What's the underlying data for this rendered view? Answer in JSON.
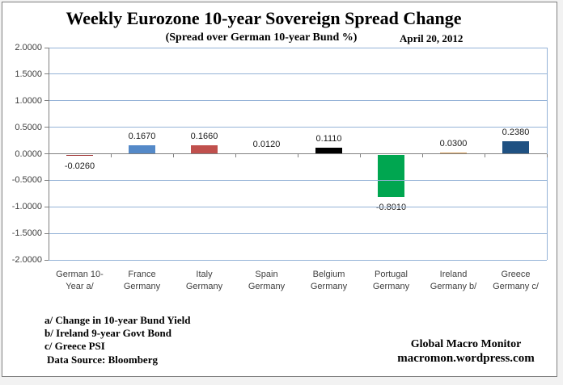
{
  "header": {
    "title": "Weekly Eurozone 10-year Sovereign Spread Change",
    "subtitle": "(Spread over German 10-year Bund  %)",
    "date_label": "April 20, 2012"
  },
  "chart_data": {
    "type": "bar",
    "title": "Weekly Eurozone 10-year Sovereign Spread Change",
    "subtitle": "(Spread over German 10-year Bund %)",
    "date": "April 20, 2012",
    "categories": [
      "German 10-Year a/",
      "France Germany",
      "Italy Germany",
      "Spain Germany",
      "Belgium Germany",
      "Portugal Germany",
      "Ireland Germany b/",
      "Greece Germany c/"
    ],
    "category_label_lines": [
      [
        "German 10-",
        "Year a/"
      ],
      [
        "France",
        "Germany"
      ],
      [
        "Italy",
        "Germany"
      ],
      [
        "Spain",
        "Germany"
      ],
      [
        "Belgium",
        "Germany"
      ],
      [
        "Portugal",
        "Germany"
      ],
      [
        "Ireland",
        "Germany b/"
      ],
      [
        "Greece",
        "Germany c/"
      ]
    ],
    "values": [
      -0.026,
      0.167,
      0.166,
      0.012,
      0.111,
      -0.801,
      0.03,
      0.238
    ],
    "value_labels": [
      "-0.0260",
      "0.1670",
      "0.1660",
      "0.0120",
      "0.1110",
      "-0.8010",
      "0.0300",
      "0.2380"
    ],
    "bar_colors": [
      "#9E3132",
      "#5489C8",
      "#C0504D",
      "#E2C118",
      "#000000",
      "#00A650",
      "#D9A05C",
      "#1F5182"
    ],
    "xlabel": "",
    "ylabel": "",
    "ylim": [
      -2,
      2
    ],
    "ytick_step": 0.5,
    "ytick_labels": [
      "2.0000",
      "1.5000",
      "1.0000",
      "0.5000",
      "0.0000",
      "-0.5000",
      "-1.0000",
      "-1.5000",
      "-2.0000"
    ],
    "grid": "horizontal gridlines on",
    "legend": "none",
    "gridline_color": "#95B3D7",
    "axis_line_color": "#808080",
    "plot_background": "#FFFFFF"
  },
  "footnotes": {
    "a": "a/ Change in 10-year Bund  Yield",
    "b": "b/ Ireland 9-year Govt Bond",
    "c": "c/ Greece PSI",
    "source": "Data Source:  Bloomberg"
  },
  "branding": {
    "name": "Global Macro Monitor",
    "url": "macromon.wordpress.com"
  }
}
